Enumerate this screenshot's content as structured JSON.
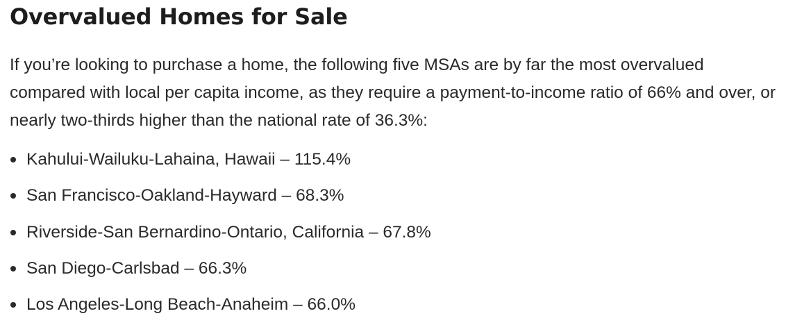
{
  "article": {
    "heading": "Overvalued Homes for Sale",
    "intro": "If you’re looking to purchase a home, the following five MSAs are by far the most overvalued compared with local per capita income, as they require a payment-to-income ratio of 66% and over, or nearly two-thirds higher than the national rate of 36.3%:",
    "items": [
      "Kahului-Wailuku-Lahaina, Hawaii – 115.4%",
      "San Francisco-Oakland-Hayward – 68.3%",
      "Riverside-San Bernardino-Ontario, California – 67.8%",
      "San Diego-Carlsbad – 66.3%",
      "Los Angeles-Long Beach-Anaheim – 66.0%"
    ]
  }
}
